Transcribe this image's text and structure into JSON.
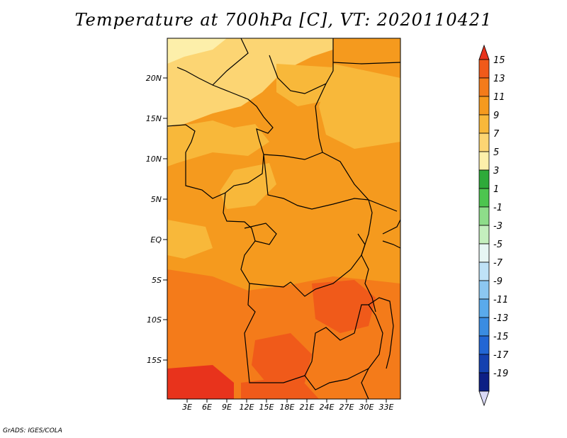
{
  "title": "Temperature at 700hPa [C], VT: 2020110421",
  "credit": "GrADS: IGES/COLA",
  "lat_labels": [
    "20N",
    "15N",
    "10N",
    "5N",
    "EQ",
    "5S",
    "10S",
    "15S"
  ],
  "lon_labels": [
    "3E",
    "6E",
    "9E",
    "12E",
    "15E",
    "18E",
    "21E",
    "24E",
    "27E",
    "30E",
    "33E"
  ],
  "colorbar": {
    "labels": [
      "15",
      "13",
      "11",
      "9",
      "7",
      "5",
      "3",
      "1",
      "-1",
      "-3",
      "-5",
      "-7",
      "-9",
      "-11",
      "-13",
      "-15",
      "-17",
      "-19"
    ],
    "colors": [
      "#E8331C",
      "#F05A1A",
      "#F47B1A",
      "#F59A1E",
      "#F8B83A",
      "#FCD573",
      "#FDEFAA",
      "#2EAA3A",
      "#4DC54F",
      "#8EDD8A",
      "#C4EFBE",
      "#E7F6F4",
      "#BFE2F7",
      "#8CC7F1",
      "#5AAAEB",
      "#3A8CE2",
      "#2266D4",
      "#1441B0",
      "#0D1F85",
      "#D9D9F6"
    ]
  },
  "colors": {
    "hot": "#E8331C",
    "warm": "#F47B1A",
    "mild": "#F59A1E",
    "cool": "#F8B83A",
    "pale": "#FCD573"
  }
}
